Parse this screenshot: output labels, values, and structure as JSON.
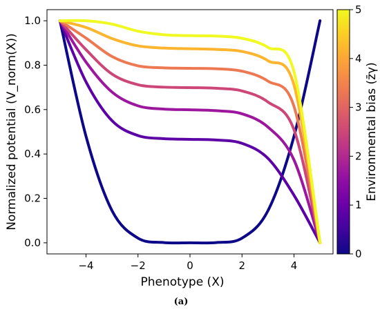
{
  "chart_data": {
    "type": "line",
    "title": "",
    "xlabel": "Phenotype (X)",
    "ylabel": "Normalized potential (V_norm(X))",
    "xlim": [
      -5.5,
      5.5
    ],
    "ylim": [
      -0.05,
      1.05
    ],
    "xticks": [
      -4,
      -2,
      0,
      2,
      4
    ],
    "xtick_labels": [
      "−4",
      "−2",
      "0",
      "2",
      "4"
    ],
    "yticks": [
      0.0,
      0.2,
      0.4,
      0.6,
      0.8,
      1.0
    ],
    "ytick_labels": [
      "0.0",
      "0.2",
      "0.4",
      "0.6",
      "0.8",
      "1.0"
    ],
    "x_range": [
      -5,
      5
    ],
    "grid": false,
    "legend": "none",
    "colorbar": {
      "label": "Environmental bias (z̄γ)",
      "range": [
        0,
        5
      ],
      "ticks": [
        0,
        1,
        2,
        3,
        4,
        5
      ],
      "tick_labels": [
        "0",
        "1",
        "2",
        "3",
        "4",
        "5"
      ],
      "colormap": "plasma"
    },
    "series": [
      {
        "z": 0,
        "color": "#0d0887",
        "x": [
          -5,
          -4,
          -3,
          -2,
          -1,
          0,
          1,
          2,
          3,
          4,
          5
        ],
        "y": [
          1.0,
          0.48,
          0.145,
          0.021,
          0.001,
          0.0,
          0.001,
          0.021,
          0.145,
          0.48,
          1.0
        ]
      },
      {
        "z": 1,
        "color": "#5c01a6",
        "x": [
          -5,
          -4,
          -3,
          -2,
          -1,
          0,
          1,
          2,
          3,
          4,
          5
        ],
        "y": [
          1.0,
          0.725,
          0.55,
          0.483,
          0.469,
          0.466,
          0.463,
          0.448,
          0.38,
          0.214,
          0.0
        ]
      },
      {
        "z": 2,
        "color": "#9c179e",
        "x": [
          -5,
          -4,
          -3,
          -2,
          -1,
          0,
          1,
          2,
          3,
          4,
          5
        ],
        "y": [
          1.0,
          0.814,
          0.679,
          0.617,
          0.602,
          0.599,
          0.595,
          0.581,
          0.521,
          0.373,
          0.0
        ]
      },
      {
        "z": 3,
        "color": "#cc4778",
        "x": [
          -5,
          -4,
          -3,
          -2,
          -1,
          0,
          1,
          2,
          3,
          4,
          5
        ],
        "y": [
          1.0,
          0.87,
          0.76,
          0.712,
          0.701,
          0.699,
          0.696,
          0.684,
          0.634,
          0.509,
          0.0
        ]
      },
      {
        "z": 4,
        "color": "#ed7953",
        "x": [
          -5,
          -4,
          -3,
          -2,
          -1,
          0,
          1,
          2,
          3,
          4,
          5
        ],
        "y": [
          1.0,
          0.922,
          0.839,
          0.797,
          0.788,
          0.786,
          0.784,
          0.773,
          0.728,
          0.614,
          0.0
        ]
      },
      {
        "z": 5,
        "color": "#fdb42f",
        "x": [
          -5,
          -4,
          -3,
          -2,
          -1,
          0,
          1,
          2,
          3,
          4,
          5
        ],
        "y": [
          1.0,
          0.97,
          0.92,
          0.887,
          0.877,
          0.874,
          0.871,
          0.862,
          0.82,
          0.71,
          0.0
        ]
      },
      {
        "z": 6,
        "color": "#f0f921",
        "x": [
          -5,
          -4,
          -3,
          -2,
          -1,
          0,
          1,
          2,
          3,
          4,
          5
        ],
        "y": [
          1.0,
          1.0,
          0.985,
          0.953,
          0.937,
          0.933,
          0.931,
          0.921,
          0.88,
          0.77,
          0.0
        ]
      }
    ]
  },
  "caption": "(a)"
}
